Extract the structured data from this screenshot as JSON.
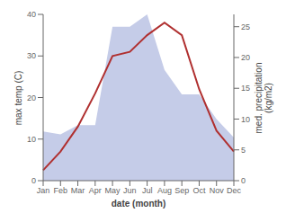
{
  "chart_data": {
    "type": "line",
    "categories": [
      "Jan",
      "Feb",
      "Mar",
      "Apr",
      "May",
      "Jun",
      "Jul",
      "Aug",
      "Sep",
      "Oct",
      "Nov",
      "Dec"
    ],
    "xlabel": "date (month)",
    "ylabel": "max temp (C)",
    "y2label": "med. precipitation\n(kg/m2)",
    "series": [
      {
        "type": "area",
        "axis": "y2",
        "color": "#c5cce8",
        "values": [
          8,
          7.5,
          9,
          9,
          25,
          25,
          27,
          18,
          14,
          14,
          10,
          7
        ]
      },
      {
        "type": "line",
        "color": "#b03030",
        "values": [
          2.5,
          7,
          13,
          21,
          30,
          31,
          35,
          38.0,
          35,
          22,
          12,
          7
        ]
      }
    ],
    "ylim": [
      0,
      40
    ],
    "yticks": [
      0,
      10,
      20,
      30,
      40
    ],
    "y2lim": [
      0,
      27
    ],
    "y2ticks": [
      0,
      5,
      10,
      15,
      20,
      25
    ],
    "grid": false
  }
}
